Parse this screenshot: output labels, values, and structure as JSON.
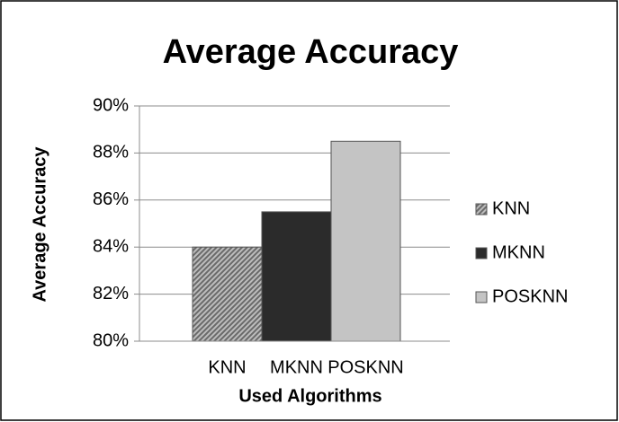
{
  "chart_data": {
    "type": "bar",
    "title": "Average Accuracy",
    "x_label": "Used Algorithms",
    "y_label": "Average Accuracy",
    "categories": [
      "KNN",
      "MKNN",
      "POSKNN"
    ],
    "values": [
      84.0,
      85.5,
      88.5
    ],
    "colors": [
      "#8a8a8a",
      "#2b2b2b",
      "#c4c4c4"
    ],
    "ylim": [
      80,
      90
    ],
    "yticks": [
      {
        "value": 80,
        "label": "80%"
      },
      {
        "value": 82,
        "label": "82%"
      },
      {
        "value": 84,
        "label": "84%"
      },
      {
        "value": 86,
        "label": "86%"
      },
      {
        "value": 88,
        "label": "88%"
      },
      {
        "value": 90,
        "label": "90%"
      }
    ],
    "grid": true,
    "legend": "right"
  }
}
